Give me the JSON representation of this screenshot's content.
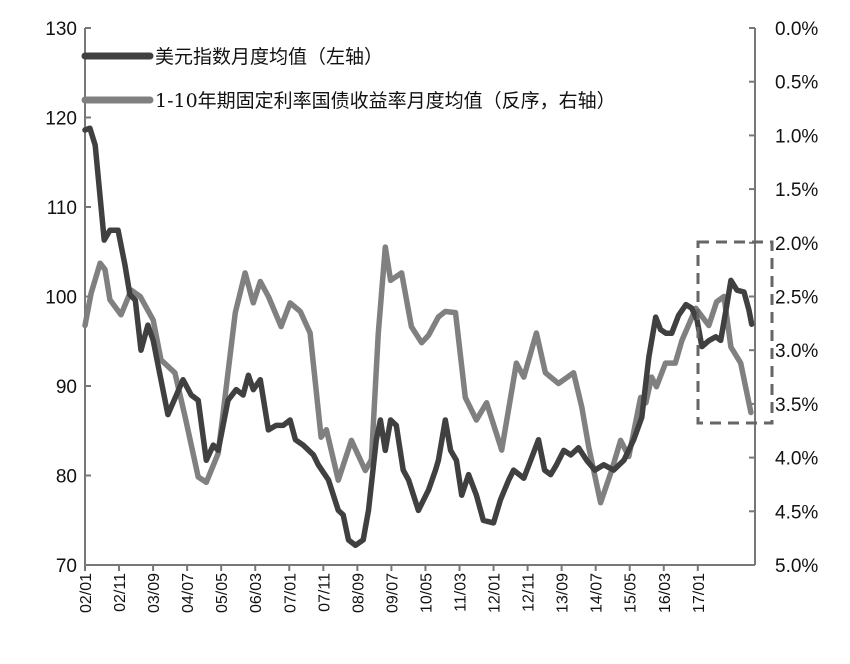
{
  "chart_data": {
    "type": "line",
    "title": "",
    "xlabel": "",
    "x_unit": "decimal year (2002.0 = 2002/01)",
    "x_tick_labels": [
      "02/01",
      "02/11",
      "03/09",
      "04/07",
      "05/05",
      "06/03",
      "07/01",
      "07/11",
      "08/09",
      "09/07",
      "10/05",
      "11/03",
      "12/01",
      "12/11",
      "13/09",
      "14/07",
      "15/05",
      "16/03",
      "17/01"
    ],
    "xlim": [
      2002.0,
      2018.4
    ],
    "left_axis": {
      "label": "",
      "ylim": [
        70,
        130
      ],
      "ticks": [
        "130",
        "120",
        "110",
        "100",
        "90",
        "80",
        "70"
      ]
    },
    "right_axis": {
      "label": "",
      "reversed": true,
      "ylim": [
        0.0,
        5.0
      ],
      "ticks": [
        "0.0%",
        "0.5%",
        "1.0%",
        "1.5%",
        "2.0%",
        "2.5%",
        "3.0%",
        "3.5%",
        "4.0%",
        "4.5%",
        "5.0%"
      ]
    },
    "legend_position": "top-left",
    "series": [
      {
        "name": "美元指数月度均值（左轴）",
        "axis": "left",
        "color": "#404040",
        "points": [
          [
            2002.0,
            118.6
          ],
          [
            2002.12,
            118.8
          ],
          [
            2002.25,
            116.9
          ],
          [
            2002.47,
            106.3
          ],
          [
            2002.61,
            107.4
          ],
          [
            2002.81,
            107.4
          ],
          [
            2002.98,
            103.5
          ],
          [
            2003.1,
            100.2
          ],
          [
            2003.23,
            99.6
          ],
          [
            2003.37,
            94.0
          ],
          [
            2003.54,
            96.8
          ],
          [
            2003.67,
            95.1
          ],
          [
            2003.79,
            92.3
          ],
          [
            2004.03,
            86.8
          ],
          [
            2004.18,
            88.4
          ],
          [
            2004.4,
            90.7
          ],
          [
            2004.6,
            89.0
          ],
          [
            2004.77,
            88.4
          ],
          [
            2004.97,
            81.7
          ],
          [
            2005.14,
            83.4
          ],
          [
            2005.26,
            82.8
          ],
          [
            2005.5,
            88.4
          ],
          [
            2005.7,
            89.6
          ],
          [
            2005.87,
            89.0
          ],
          [
            2006.0,
            91.2
          ],
          [
            2006.12,
            89.6
          ],
          [
            2006.29,
            90.7
          ],
          [
            2006.49,
            85.1
          ],
          [
            2006.68,
            85.6
          ],
          [
            2006.85,
            85.6
          ],
          [
            2007.02,
            86.2
          ],
          [
            2007.15,
            84.0
          ],
          [
            2007.34,
            83.4
          ],
          [
            2007.59,
            82.3
          ],
          [
            2007.71,
            81.2
          ],
          [
            2007.96,
            79.5
          ],
          [
            2008.2,
            76.1
          ],
          [
            2008.32,
            75.6
          ],
          [
            2008.45,
            72.8
          ],
          [
            2008.62,
            72.2
          ],
          [
            2008.81,
            72.8
          ],
          [
            2008.94,
            76.1
          ],
          [
            2009.13,
            84.0
          ],
          [
            2009.23,
            86.2
          ],
          [
            2009.35,
            82.8
          ],
          [
            2009.48,
            86.2
          ],
          [
            2009.62,
            85.6
          ],
          [
            2009.79,
            80.6
          ],
          [
            2009.92,
            79.5
          ],
          [
            2010.16,
            76.1
          ],
          [
            2010.41,
            78.4
          ],
          [
            2010.58,
            80.6
          ],
          [
            2010.65,
            81.7
          ],
          [
            2010.82,
            86.2
          ],
          [
            2010.95,
            82.8
          ],
          [
            2011.09,
            81.7
          ],
          [
            2011.22,
            77.8
          ],
          [
            2011.39,
            80.1
          ],
          [
            2011.58,
            77.8
          ],
          [
            2011.75,
            75.0
          ],
          [
            2012.0,
            74.7
          ],
          [
            2012.17,
            77.3
          ],
          [
            2012.37,
            79.5
          ],
          [
            2012.49,
            80.6
          ],
          [
            2012.74,
            79.7
          ],
          [
            2012.91,
            81.7
          ],
          [
            2013.1,
            84.0
          ],
          [
            2013.25,
            80.6
          ],
          [
            2013.4,
            80.1
          ],
          [
            2013.54,
            81.2
          ],
          [
            2013.72,
            82.8
          ],
          [
            2013.89,
            82.3
          ],
          [
            2014.08,
            83.1
          ],
          [
            2014.28,
            81.7
          ],
          [
            2014.48,
            80.6
          ],
          [
            2014.7,
            81.2
          ],
          [
            2014.94,
            80.6
          ],
          [
            2015.19,
            81.7
          ],
          [
            2015.43,
            84.0
          ],
          [
            2015.63,
            86.5
          ],
          [
            2015.8,
            93.2
          ],
          [
            2015.97,
            97.7
          ],
          [
            2016.09,
            96.3
          ],
          [
            2016.22,
            95.9
          ],
          [
            2016.36,
            95.9
          ],
          [
            2016.53,
            97.9
          ],
          [
            2016.71,
            99.1
          ],
          [
            2016.85,
            98.7
          ],
          [
            2016.98,
            97.4
          ],
          [
            2017.1,
            94.4
          ],
          [
            2017.28,
            95.1
          ],
          [
            2017.44,
            95.5
          ],
          [
            2017.56,
            95.1
          ],
          [
            2017.69,
            98.5
          ],
          [
            2017.81,
            101.8
          ],
          [
            2017.96,
            100.7
          ],
          [
            2018.13,
            100.5
          ],
          [
            2018.25,
            98.5
          ],
          [
            2018.32,
            96.9
          ]
        ]
      },
      {
        "name": "1-10年期固定利率国债收益率月度均值（反序，右轴）",
        "axis": "right",
        "color": "#808080",
        "points": [
          [
            2002.0,
            2.77
          ],
          [
            2002.15,
            2.47
          ],
          [
            2002.37,
            2.19
          ],
          [
            2002.49,
            2.25
          ],
          [
            2002.61,
            2.53
          ],
          [
            2002.88,
            2.67
          ],
          [
            2003.13,
            2.44
          ],
          [
            2003.35,
            2.5
          ],
          [
            2003.67,
            2.72
          ],
          [
            2003.86,
            3.09
          ],
          [
            2004.2,
            3.21
          ],
          [
            2004.45,
            3.62
          ],
          [
            2004.77,
            4.18
          ],
          [
            2004.97,
            4.23
          ],
          [
            2005.26,
            3.96
          ],
          [
            2005.68,
            2.65
          ],
          [
            2005.92,
            2.28
          ],
          [
            2006.12,
            2.56
          ],
          [
            2006.29,
            2.36
          ],
          [
            2006.49,
            2.5
          ],
          [
            2006.8,
            2.78
          ],
          [
            2007.02,
            2.56
          ],
          [
            2007.27,
            2.64
          ],
          [
            2007.51,
            2.84
          ],
          [
            2007.78,
            3.81
          ],
          [
            2007.91,
            3.74
          ],
          [
            2008.2,
            4.21
          ],
          [
            2008.52,
            3.84
          ],
          [
            2008.86,
            4.12
          ],
          [
            2009.01,
            4.02
          ],
          [
            2009.18,
            2.84
          ],
          [
            2009.35,
            2.04
          ],
          [
            2009.48,
            2.35
          ],
          [
            2009.75,
            2.28
          ],
          [
            2009.99,
            2.78
          ],
          [
            2010.24,
            2.93
          ],
          [
            2010.41,
            2.86
          ],
          [
            2010.65,
            2.69
          ],
          [
            2010.82,
            2.64
          ],
          [
            2011.07,
            2.65
          ],
          [
            2011.31,
            3.44
          ],
          [
            2011.58,
            3.65
          ],
          [
            2011.83,
            3.49
          ],
          [
            2012.2,
            3.93
          ],
          [
            2012.56,
            3.12
          ],
          [
            2012.74,
            3.25
          ],
          [
            2013.05,
            2.84
          ],
          [
            2013.27,
            3.21
          ],
          [
            2013.59,
            3.31
          ],
          [
            2013.96,
            3.21
          ],
          [
            2014.16,
            3.53
          ],
          [
            2014.33,
            3.9
          ],
          [
            2014.62,
            4.42
          ],
          [
            2014.89,
            4.12
          ],
          [
            2015.11,
            3.84
          ],
          [
            2015.31,
            3.99
          ],
          [
            2015.6,
            3.44
          ],
          [
            2015.73,
            3.49
          ],
          [
            2015.87,
            3.25
          ],
          [
            2015.99,
            3.34
          ],
          [
            2016.21,
            3.12
          ],
          [
            2016.45,
            3.12
          ],
          [
            2016.61,
            2.91
          ],
          [
            2016.95,
            2.61
          ],
          [
            2017.27,
            2.77
          ],
          [
            2017.46,
            2.55
          ],
          [
            2017.64,
            2.5
          ],
          [
            2017.81,
            2.97
          ],
          [
            2018.05,
            3.12
          ],
          [
            2018.3,
            3.58
          ]
        ]
      }
    ]
  }
}
